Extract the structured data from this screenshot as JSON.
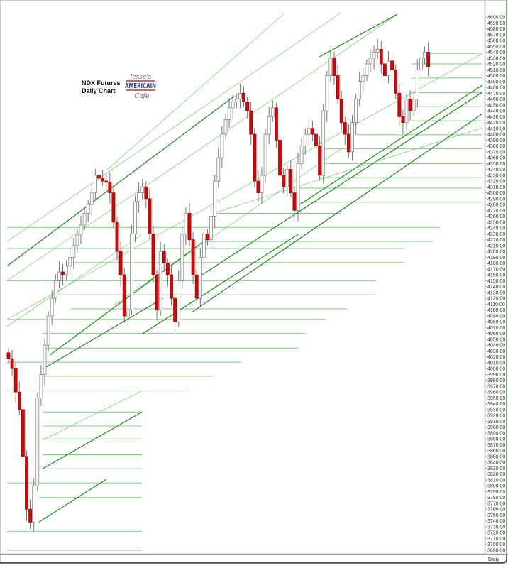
{
  "chart_data": {
    "type": "candlestick",
    "title_lines": [
      "NDX  Futures",
      "Daily Chart"
    ],
    "logo_text": [
      "Jesse's",
      "AMERICAIN",
      "Cafe"
    ],
    "period_label": "Daily",
    "ylim": [
      3690,
      4600
    ],
    "yticks": {
      "start": 3690,
      "end": 4600,
      "step": 10,
      "format_decimals": 2
    },
    "grid": false,
    "colors": {
      "down": "#e00000",
      "up_fill": "#ffffff",
      "up_outline": "#888888",
      "trend_dark": "#1a8a1a",
      "trend_light": "#7fcf7f",
      "axis": "#999999",
      "border": "#3cb043"
    },
    "close": [
      4017,
      4000,
      3960,
      3930,
      3850,
      3760,
      3738,
      3800,
      3950,
      3990,
      4040,
      4090,
      4120,
      4150,
      4165,
      4160,
      4175,
      4190,
      4210,
      4229,
      4245,
      4265,
      4280,
      4300,
      4330,
      4325,
      4320,
      4318,
      4300,
      4250,
      4200,
      4160,
      4090,
      4100,
      4230,
      4285,
      4300,
      4310,
      4290,
      4230,
      4160,
      4100,
      4200,
      4180,
      4160,
      4120,
      4080,
      4150,
      4230,
      4265,
      4220,
      4160,
      4120,
      4190,
      4230,
      4220,
      4260,
      4320,
      4360,
      4400,
      4425,
      4445,
      4455,
      4460,
      4470,
      4455,
      4440,
      4400,
      4320,
      4300,
      4330,
      4400,
      4430,
      4445,
      4390,
      4330,
      4310,
      4340,
      4300,
      4270,
      4350,
      4380,
      4400,
      4410,
      4400,
      4380,
      4330,
      4440,
      4500,
      4530,
      4500,
      4460,
      4420,
      4400,
      4370,
      4420,
      4460,
      4490,
      4500,
      4520,
      4530,
      4540,
      4545,
      4520,
      4500,
      4525,
      4510,
      4470,
      4430,
      4420,
      4460,
      4440,
      4460,
      4510,
      4530,
      4540,
      4515
    ],
    "trendlines_diagonal": [
      {
        "from": [
          -0.4,
          4175
        ],
        "to": [
          62.4,
          4465
        ],
        "style": "dark"
      },
      {
        "from": [
          -0.4,
          4217
        ],
        "to": [
          91.8,
          4607
        ],
        "style": "light"
      },
      {
        "from": [
          -0.4,
          4150
        ],
        "to": [
          107.5,
          4605
        ],
        "style": "light"
      },
      {
        "from": [
          -0.4,
          4084
        ],
        "to": [
          131,
          4538
        ],
        "style": "light"
      },
      {
        "from": [
          -0.4,
          4072
        ],
        "to": [
          36.9,
          4229
        ],
        "style": "light"
      },
      {
        "from": [
          9.4,
          3999
        ],
        "to": [
          42.7,
          4120
        ],
        "style": "dark"
      },
      {
        "from": [
          8.4,
          3738
        ],
        "to": [
          27,
          3811
        ],
        "style": "dark"
      },
      {
        "from": [
          9.4,
          3829
        ],
        "to": [
          36.9,
          3926
        ],
        "style": "dark"
      },
      {
        "from": [
          9.4,
          3878
        ],
        "to": [
          36.9,
          3962
        ],
        "style": "light"
      },
      {
        "from": [
          52.5,
          4156
        ],
        "to": [
          131,
          4472
        ],
        "style": "dark"
      },
      {
        "from": [
          50.6,
          4096
        ],
        "to": [
          131,
          4435
        ],
        "style": "dark"
      },
      {
        "from": [
          80,
          4278
        ],
        "to": [
          131,
          4484
        ],
        "style": "dark"
      },
      {
        "from": [
          85.9,
          4532
        ],
        "to": [
          107.5,
          4605
        ],
        "style": "dark"
      },
      {
        "from": [
          29,
          4108
        ],
        "to": [
          91.8,
          4375
        ],
        "style": "light"
      },
      {
        "from": [
          56.5,
          4265
        ],
        "to": [
          131,
          4411
        ],
        "style": "light"
      },
      {
        "from": [
          11.4,
          4023
        ],
        "to": [
          56.5,
          4229
        ],
        "style": "dark"
      },
      {
        "from": [
          36.9,
          4059
        ],
        "to": [
          80,
          4229
        ],
        "style": "dark"
      },
      {
        "from": [
          27,
          4338
        ],
        "to": [
          76,
          4605
        ],
        "style": "light"
      }
    ],
    "trendlines_horizontal": [
      [
        3690,
        -0.4,
        36.9
      ],
      [
        3722,
        -0.4,
        36.9
      ],
      [
        3780,
        8.4,
        36.9
      ],
      [
        3805,
        -0.4,
        36.9
      ],
      [
        3829,
        8.4,
        36.9
      ],
      [
        3853,
        9.4,
        36.9
      ],
      [
        3880,
        9.4,
        36.9
      ],
      [
        3902,
        9.4,
        36.9
      ],
      [
        3926,
        9.4,
        36.9
      ],
      [
        3962,
        -0.4,
        49.6
      ],
      [
        3987,
        9.4,
        56.5
      ],
      [
        4011,
        -0.4,
        64.3
      ],
      [
        4035,
        9.4,
        80
      ],
      [
        4060,
        9.4,
        82
      ],
      [
        4084,
        -0.4,
        87.8
      ],
      [
        4102,
        17.3,
        93.7
      ],
      [
        4126,
        13.3,
        101.6
      ],
      [
        4150,
        -0.4,
        101.6
      ],
      [
        4181,
        17.3,
        109.4
      ],
      [
        4205,
        -0.4,
        109.4
      ],
      [
        4217,
        54.5,
        117.3
      ],
      [
        4241,
        -0.4,
        119.2
      ],
      [
        4265,
        56.5,
        91.8
      ],
      [
        4284,
        80,
        131
      ],
      [
        4308,
        80,
        131
      ],
      [
        4326,
        85.9,
        131
      ],
      [
        4350,
        85.9,
        131
      ],
      [
        4375,
        85.9,
        131
      ],
      [
        4399,
        95.7,
        131
      ],
      [
        4423,
        111.4,
        131
      ],
      [
        4447,
        111.4,
        131
      ],
      [
        4471,
        111.4,
        131
      ],
      [
        4496,
        111.4,
        131
      ],
      [
        4520,
        111.4,
        131
      ],
      [
        4538,
        115.3,
        131
      ]
    ]
  }
}
